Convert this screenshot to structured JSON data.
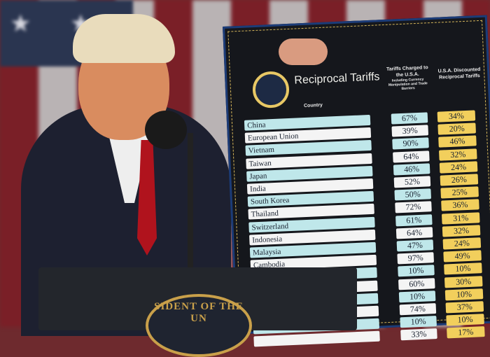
{
  "board": {
    "title": "Reciprocal Tariffs",
    "col_country": "Country",
    "col_charged": "Tariffs Charged to the U.S.A.",
    "col_charged_sub": "Including Currency Manipulation and Trade Barriers",
    "col_discounted": "U.S.A. Discounted Reciprocal Tariffs",
    "rows": [
      {
        "country": "China",
        "charged": "67%",
        "discounted": "34%"
      },
      {
        "country": "European Union",
        "charged": "39%",
        "discounted": "20%"
      },
      {
        "country": "Vietnam",
        "charged": "90%",
        "discounted": "46%"
      },
      {
        "country": "Taiwan",
        "charged": "64%",
        "discounted": "32%"
      },
      {
        "country": "Japan",
        "charged": "46%",
        "discounted": "24%"
      },
      {
        "country": "India",
        "charged": "52%",
        "discounted": "26%"
      },
      {
        "country": "South Korea",
        "charged": "50%",
        "discounted": "25%"
      },
      {
        "country": "Thailand",
        "charged": "72%",
        "discounted": "36%"
      },
      {
        "country": "Switzerland",
        "charged": "61%",
        "discounted": "31%"
      },
      {
        "country": "Indonesia",
        "charged": "64%",
        "discounted": "32%"
      },
      {
        "country": "Malaysia",
        "charged": "47%",
        "discounted": "24%"
      },
      {
        "country": "Cambodia",
        "charged": "97%",
        "discounted": "49%"
      },
      {
        "country": "",
        "charged": "10%",
        "discounted": "10%"
      },
      {
        "country": "",
        "charged": "60%",
        "discounted": "30%"
      },
      {
        "country": "",
        "charged": "10%",
        "discounted": "10%"
      },
      {
        "country": "",
        "charged": "74%",
        "discounted": "37%"
      },
      {
        "country": "",
        "charged": "10%",
        "discounted": "10%"
      },
      {
        "country": "",
        "charged": "33%",
        "discounted": "17%"
      }
    ]
  },
  "podium": {
    "seal_text": "SIDENT OF THE UN"
  },
  "colors": {
    "teal_row": "#bfe7ea",
    "white_row": "#f4f4f4",
    "gold_cell": "#f2cf5c",
    "board": "#15171c",
    "tie": "#b0131d"
  }
}
